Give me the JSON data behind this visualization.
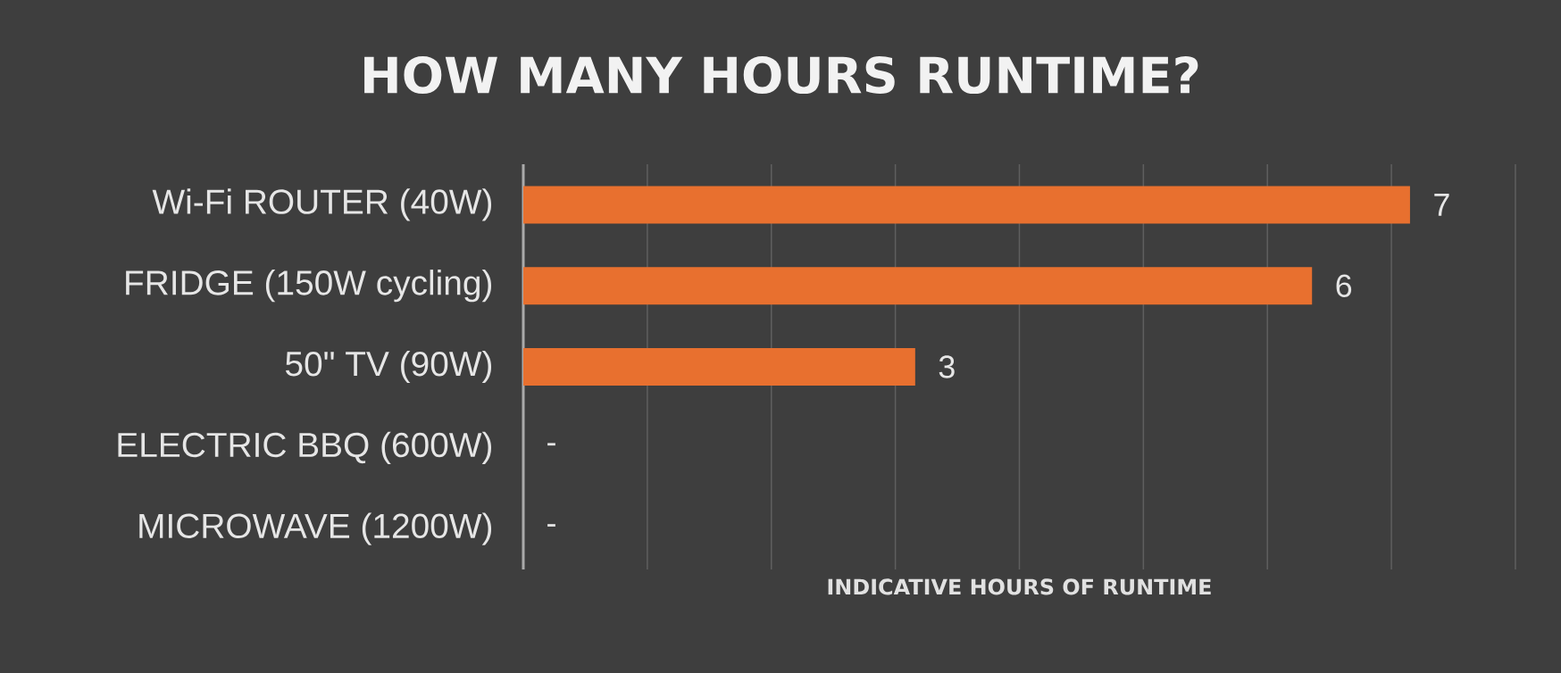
{
  "chart_data": {
    "type": "bar",
    "orientation": "horizontal",
    "title": "HOW MANY HOURS RUNTIME?",
    "xlabel": "INDICATIVE HOURS OF RUNTIME",
    "categories": [
      "Wi-Fi ROUTER (40W)",
      "FRIDGE (150W cycling)",
      "50\" TV (90W)",
      "ELECTRIC BBQ (600W)",
      "MICROWAVE (1200W)"
    ],
    "values": [
      7.15,
      6.36,
      3.16,
      0,
      0
    ],
    "value_labels": [
      "7",
      "6",
      "3",
      "-",
      "-"
    ],
    "color": "#e8702f",
    "xlim": [
      0,
      8
    ],
    "xticks": [
      {
        "value": 0,
        "label": null
      },
      {
        "value": 1,
        "label": null
      },
      {
        "value": 2,
        "label": null
      },
      {
        "value": 3,
        "label": null
      },
      {
        "value": 4,
        "label": null
      },
      {
        "value": 5,
        "label": null
      },
      {
        "value": 6,
        "label": null
      },
      {
        "value": 7,
        "label": null
      },
      {
        "value": 8,
        "label": null
      }
    ],
    "grid": "x",
    "tick_labels": "y"
  }
}
